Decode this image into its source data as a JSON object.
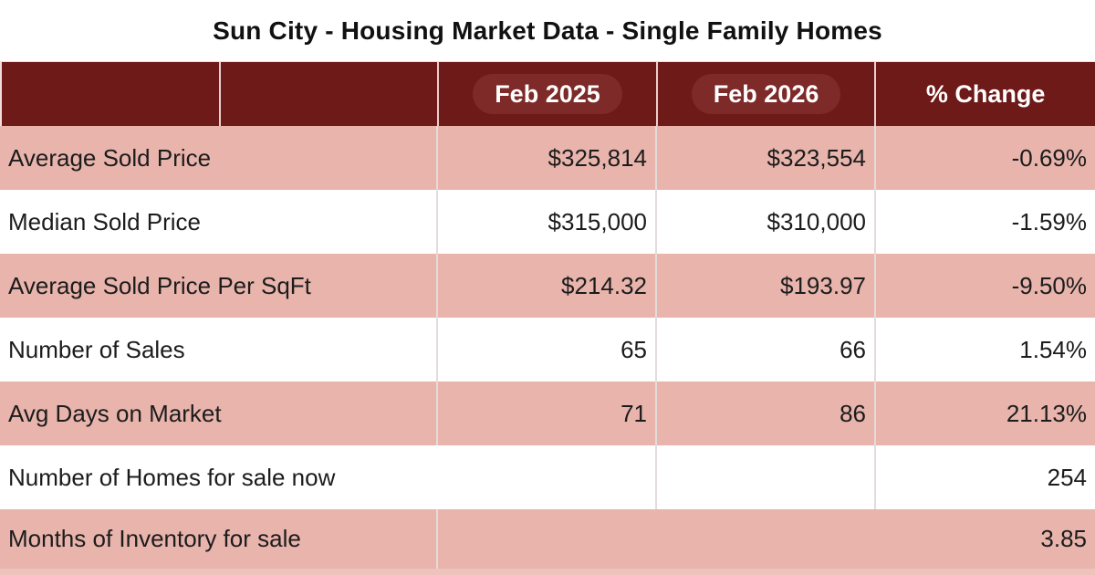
{
  "title": "Sun City - Housing Market Data - Single Family Homes",
  "header": {
    "col_feb2025": "Feb 2025",
    "col_feb2026": "Feb 2026",
    "col_change": "% Change"
  },
  "rows": [
    {
      "label": "Average Sold Price",
      "feb2025": "$325,814",
      "feb2026": "$323,554",
      "change": "-0.69%"
    },
    {
      "label": "Median Sold Price",
      "feb2025": "$315,000",
      "feb2026": "$310,000",
      "change": "-1.59%"
    },
    {
      "label": "Average Sold Price Per SqFt",
      "feb2025": "$214.32",
      "feb2026": "$193.97",
      "change": "-9.50%"
    },
    {
      "label": "Number of Sales",
      "feb2025": "65",
      "feb2026": "66",
      "change": "1.54%"
    },
    {
      "label": "Avg Days on Market",
      "feb2025": "71",
      "feb2026": "86",
      "change": "21.13%"
    },
    {
      "label": "Number of Homes for sale now",
      "feb2025": "",
      "feb2026": "",
      "change": "254"
    },
    {
      "label": "Months of Inventory for sale",
      "value": "3.85"
    }
  ],
  "colors": {
    "header_bg": "#6e1a18",
    "header_pill_bg": "#7d2a28",
    "header_text": "#ffffff",
    "row_pink": "#e8b4ac",
    "row_white": "#ffffff",
    "gridline": "#e4dcda",
    "bottom_strip": "#eec3bb",
    "body_text": "#1c1c1c",
    "title_text": "#111111"
  },
  "chart_data": {
    "type": "table",
    "title": "Sun City - Housing Market Data - Single Family Homes",
    "columns": [
      "",
      "Feb 2025",
      "Feb 2026",
      "% Change"
    ],
    "rows": [
      [
        "Average Sold Price",
        "$325,814",
        "$323,554",
        "-0.69%"
      ],
      [
        "Median Sold Price",
        "$315,000",
        "$310,000",
        "-1.59%"
      ],
      [
        "Average Sold Price Per SqFt",
        "$214.32",
        "$193.97",
        "-9.50%"
      ],
      [
        "Number of Sales",
        "65",
        "66",
        "1.54%"
      ],
      [
        "Avg Days on Market",
        "71",
        "86",
        "21.13%"
      ],
      [
        "Number of Homes for sale now",
        "",
        "",
        "254"
      ],
      [
        "Months of Inventory for sale",
        "",
        "",
        "3.85"
      ]
    ],
    "layout_hints": {
      "striped_rows": true,
      "stripe_color": "#e8b4ac",
      "header_color": "#6e1a18",
      "merged_cells": [
        "row 6 label spans first 3 columns",
        "row 7 value cell spans from column 2 to table right edge"
      ]
    }
  }
}
